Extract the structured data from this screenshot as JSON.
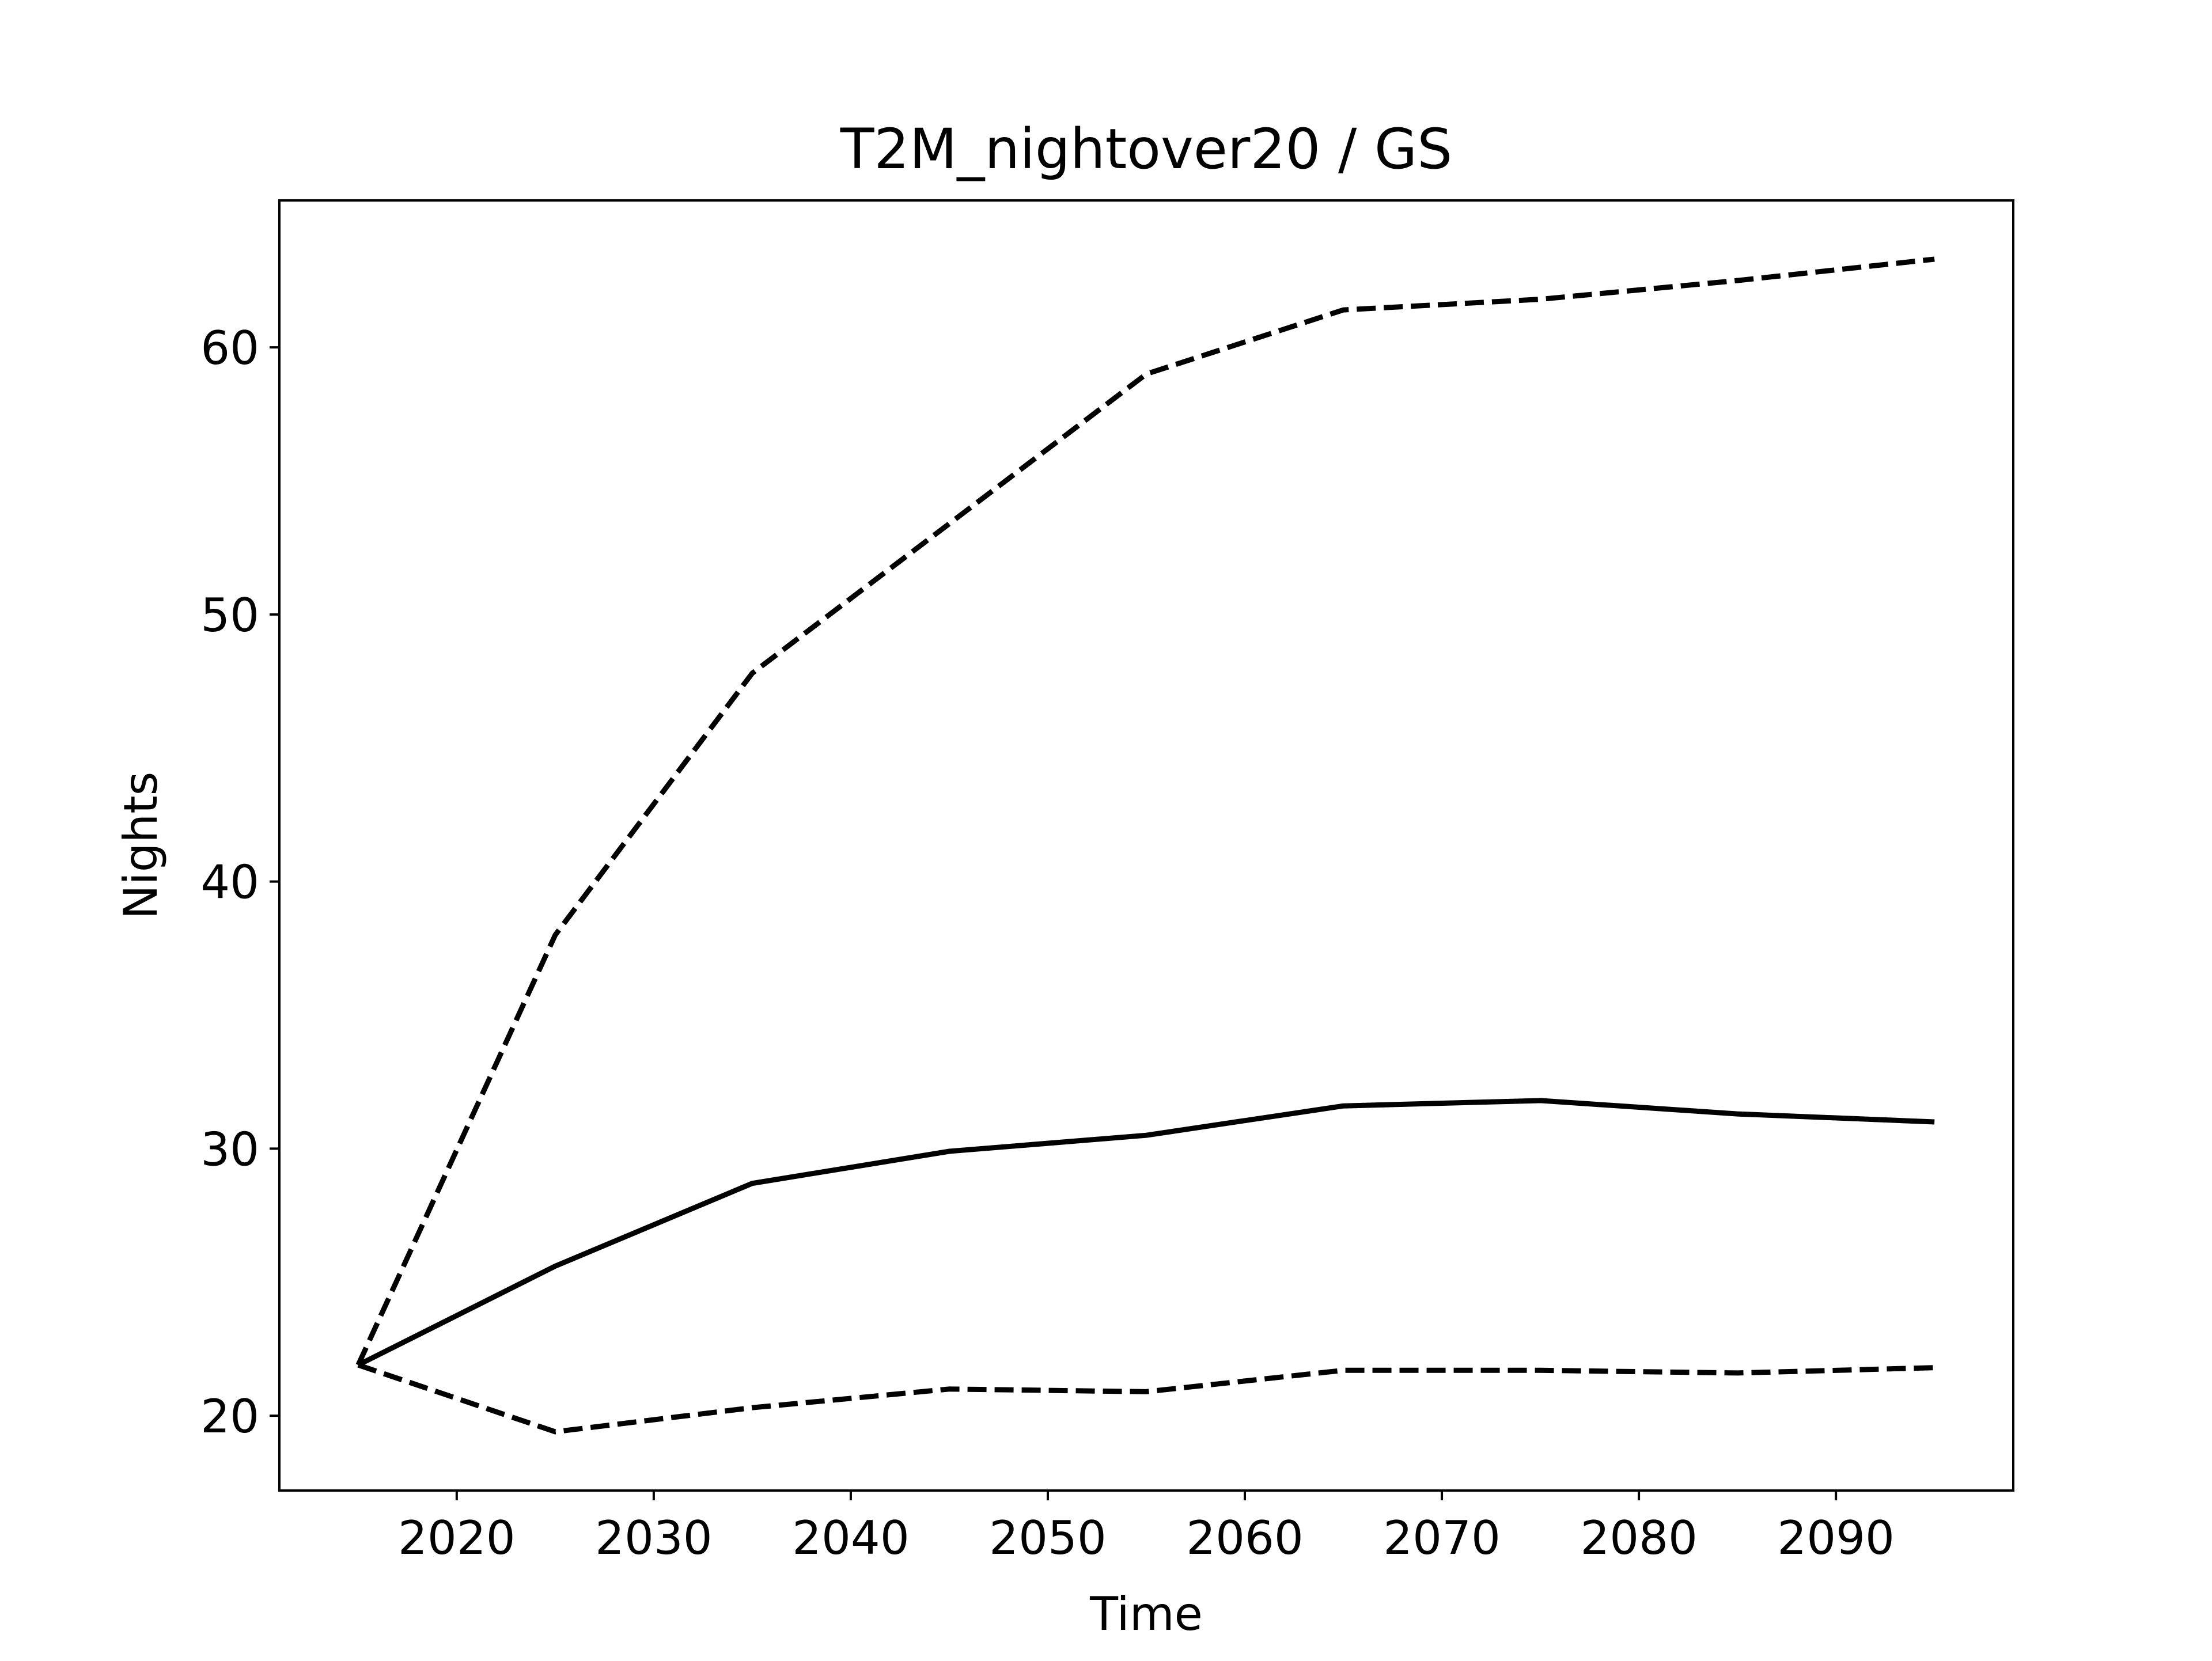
{
  "chart_data": {
    "type": "line",
    "title": "T2M_nightover20 / GS",
    "xlabel": "Time",
    "ylabel": "Nights",
    "xlim": [
      2011,
      2099
    ],
    "ylim": [
      17.2,
      65.5
    ],
    "x_ticks": [
      2020,
      2030,
      2040,
      2050,
      2060,
      2070,
      2080,
      2090
    ],
    "y_ticks": [
      20,
      30,
      40,
      50,
      60
    ],
    "grid": false,
    "line_color": "#000000",
    "x": [
      2015,
      2025,
      2035,
      2045,
      2055,
      2065,
      2075,
      2085,
      2095
    ],
    "series": [
      {
        "style": "solid",
        "values": [
          21.9,
          25.6,
          28.7,
          29.9,
          30.5,
          31.6,
          31.8,
          31.3,
          31.0
        ]
      },
      {
        "style": "dashed",
        "values": [
          21.9,
          38.0,
          47.8,
          53.4,
          59.0,
          61.4,
          61.8,
          62.5,
          63.3
        ]
      },
      {
        "style": "dashed",
        "values": [
          21.9,
          19.4,
          20.3,
          21.0,
          20.9,
          21.7,
          21.7,
          21.6,
          21.8
        ]
      }
    ]
  }
}
